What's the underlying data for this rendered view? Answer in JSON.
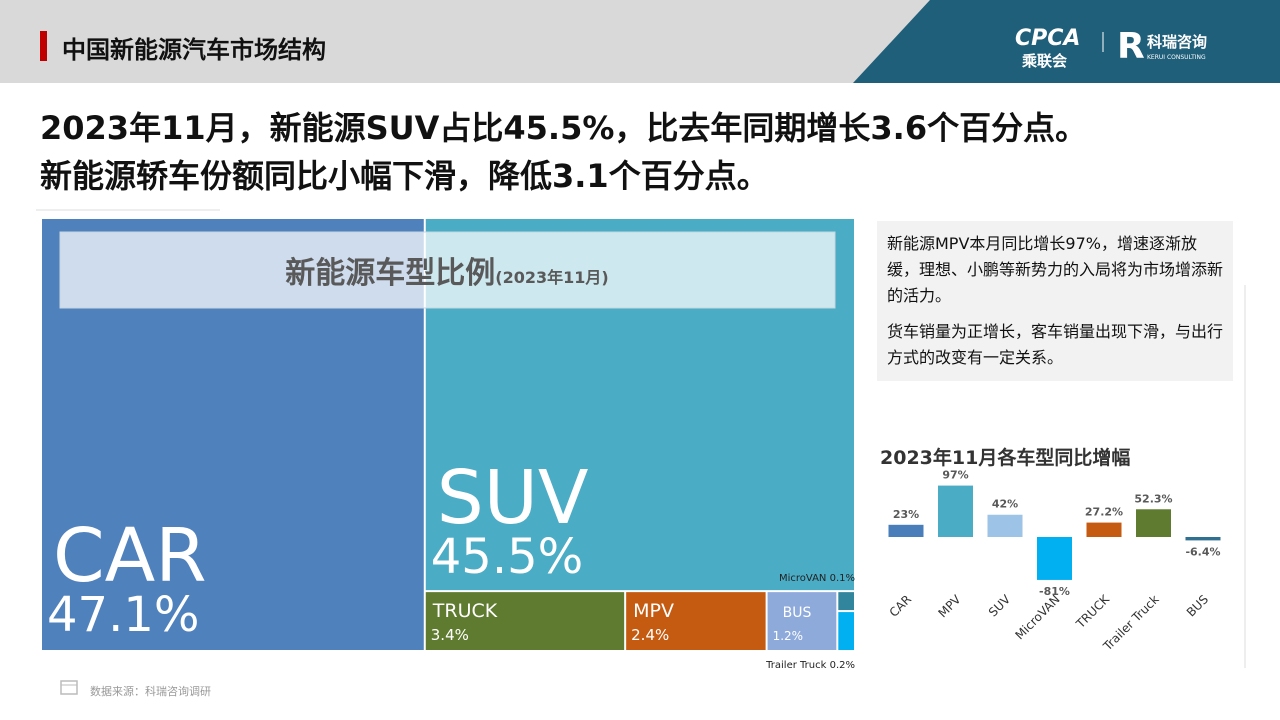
{
  "header": {
    "title": "中国新能源汽车市场结构",
    "logos": [
      "CPCA",
      "乘联会",
      "科瑞咨询",
      "KERUI CONSULTING"
    ]
  },
  "headline": [
    "2023年11月，新能源SUV占比45.5%，比去年同期增长3.6个百分点。",
    "新能源轿车份额同比小幅下滑，降低3.1个百分点。"
  ],
  "chart_data": [
    {
      "type": "treemap",
      "title": "新能源车型比例",
      "subtitle": "(2023年11月)",
      "categories": [
        "CAR",
        "SUV",
        "TRUCK",
        "MPV",
        "BUS",
        "MicroVAN",
        "Trailer Truck"
      ],
      "values": [
        47.1,
        45.5,
        3.4,
        2.4,
        1.2,
        0.1,
        0.2
      ],
      "value_labels": [
        "47.1%",
        "45.5%",
        "3.4%",
        "2.4%",
        "1.2%",
        "0.1%",
        "0.2%"
      ],
      "colors": [
        "#4f81bd",
        "#4bacc6",
        "#5e7b2f",
        "#c55a11",
        "#8eaadb",
        "#31859c",
        "#00b0f0"
      ]
    },
    {
      "type": "bar",
      "title": "2023年11月各车型同比增幅",
      "categories": [
        "CAR",
        "MPV",
        "SUV",
        "MicroVAN",
        "TRUCK",
        "Trailer Truck",
        "BUS"
      ],
      "values": [
        23,
        97,
        42,
        -81,
        27.2,
        52.3,
        -6.4
      ],
      "value_labels": [
        "23%",
        "97%",
        "42%",
        "-81%",
        "27.2%",
        "52.3%",
        "-6.4%"
      ],
      "colors": [
        "#4a7ebb",
        "#4bacc6",
        "#9dc3e6",
        "#00b0f0",
        "#c55a11",
        "#5e7b2f",
        "#2f6f8f"
      ]
    }
  ],
  "notes": [
    "新能源MPV本月同比增长97%，增速逐渐放缓，理想、小鹏等新势力的入局将为市场增添新的活力。",
    "货车销量为正增长，客车销量出现下滑，与出行方式的改变有一定关系。"
  ],
  "source": "数据来源：科瑞咨询调研"
}
